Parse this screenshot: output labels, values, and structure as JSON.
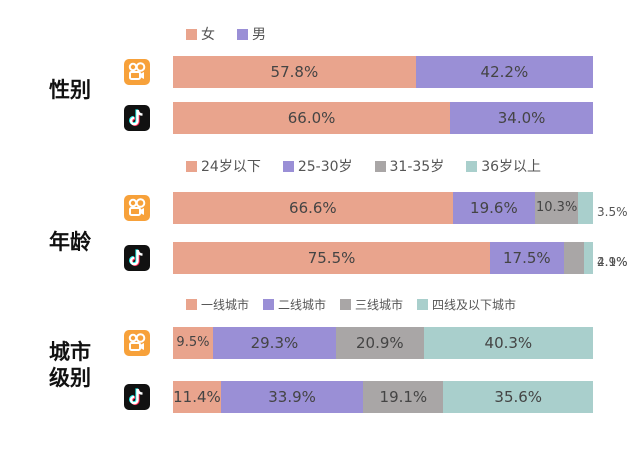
{
  "colors": {
    "female": "#e9a48d",
    "male": "#9a8fd6",
    "gray": "#a9a6a6",
    "teal": "#a9cfcc",
    "kuaishou_icon": "#f7a13a",
    "douyin_icon": "#111111"
  },
  "icons": [
    "kuaishou-logo-icon",
    "douyin-logo-icon"
  ],
  "chart_data": [
    {
      "type": "bar",
      "orientation": "horizontal",
      "stacked": true,
      "percent": true,
      "title": "性别",
      "categories": [
        "kuaishou",
        "douyin"
      ],
      "series": [
        {
          "name": "女",
          "values": [
            57.8,
            66.0
          ],
          "labels": [
            "57.8%",
            "66.0%"
          ]
        },
        {
          "name": "男",
          "values": [
            42.2,
            34.0
          ],
          "labels": [
            "42.2%",
            "34.0%"
          ]
        }
      ]
    },
    {
      "type": "bar",
      "orientation": "horizontal",
      "stacked": true,
      "percent": true,
      "title": "年龄",
      "categories": [
        "kuaishou",
        "douyin"
      ],
      "series": [
        {
          "name": "24岁以下",
          "values": [
            66.6,
            75.5
          ],
          "labels": [
            "66.6%",
            "75.5%"
          ]
        },
        {
          "name": "25-30岁",
          "values": [
            19.6,
            17.5
          ],
          "labels": [
            "19.6%",
            "17.5%"
          ]
        },
        {
          "name": "31-35岁",
          "values": [
            10.3,
            4.9
          ],
          "labels": [
            "10.3%",
            "4.9%"
          ]
        },
        {
          "name": "36岁以上",
          "values": [
            3.5,
            2.1
          ],
          "labels": [
            "3.5%",
            "2.1%"
          ]
        }
      ]
    },
    {
      "type": "bar",
      "orientation": "horizontal",
      "stacked": true,
      "percent": true,
      "title": "城市级别",
      "categories": [
        "kuaishou",
        "douyin"
      ],
      "series": [
        {
          "name": "一线城市",
          "values": [
            9.5,
            11.4
          ],
          "labels": [
            "9.5%",
            "11.4%"
          ]
        },
        {
          "name": "二线城市",
          "values": [
            29.3,
            33.9
          ],
          "labels": [
            "29.3%",
            "33.9%"
          ]
        },
        {
          "name": "三线城市",
          "values": [
            20.9,
            19.1
          ],
          "labels": [
            "20.9%",
            "19.1%"
          ]
        },
        {
          "name": "四线及以下城市",
          "values": [
            40.3,
            35.6
          ],
          "labels": [
            "40.3%",
            "35.6%"
          ]
        }
      ]
    }
  ]
}
